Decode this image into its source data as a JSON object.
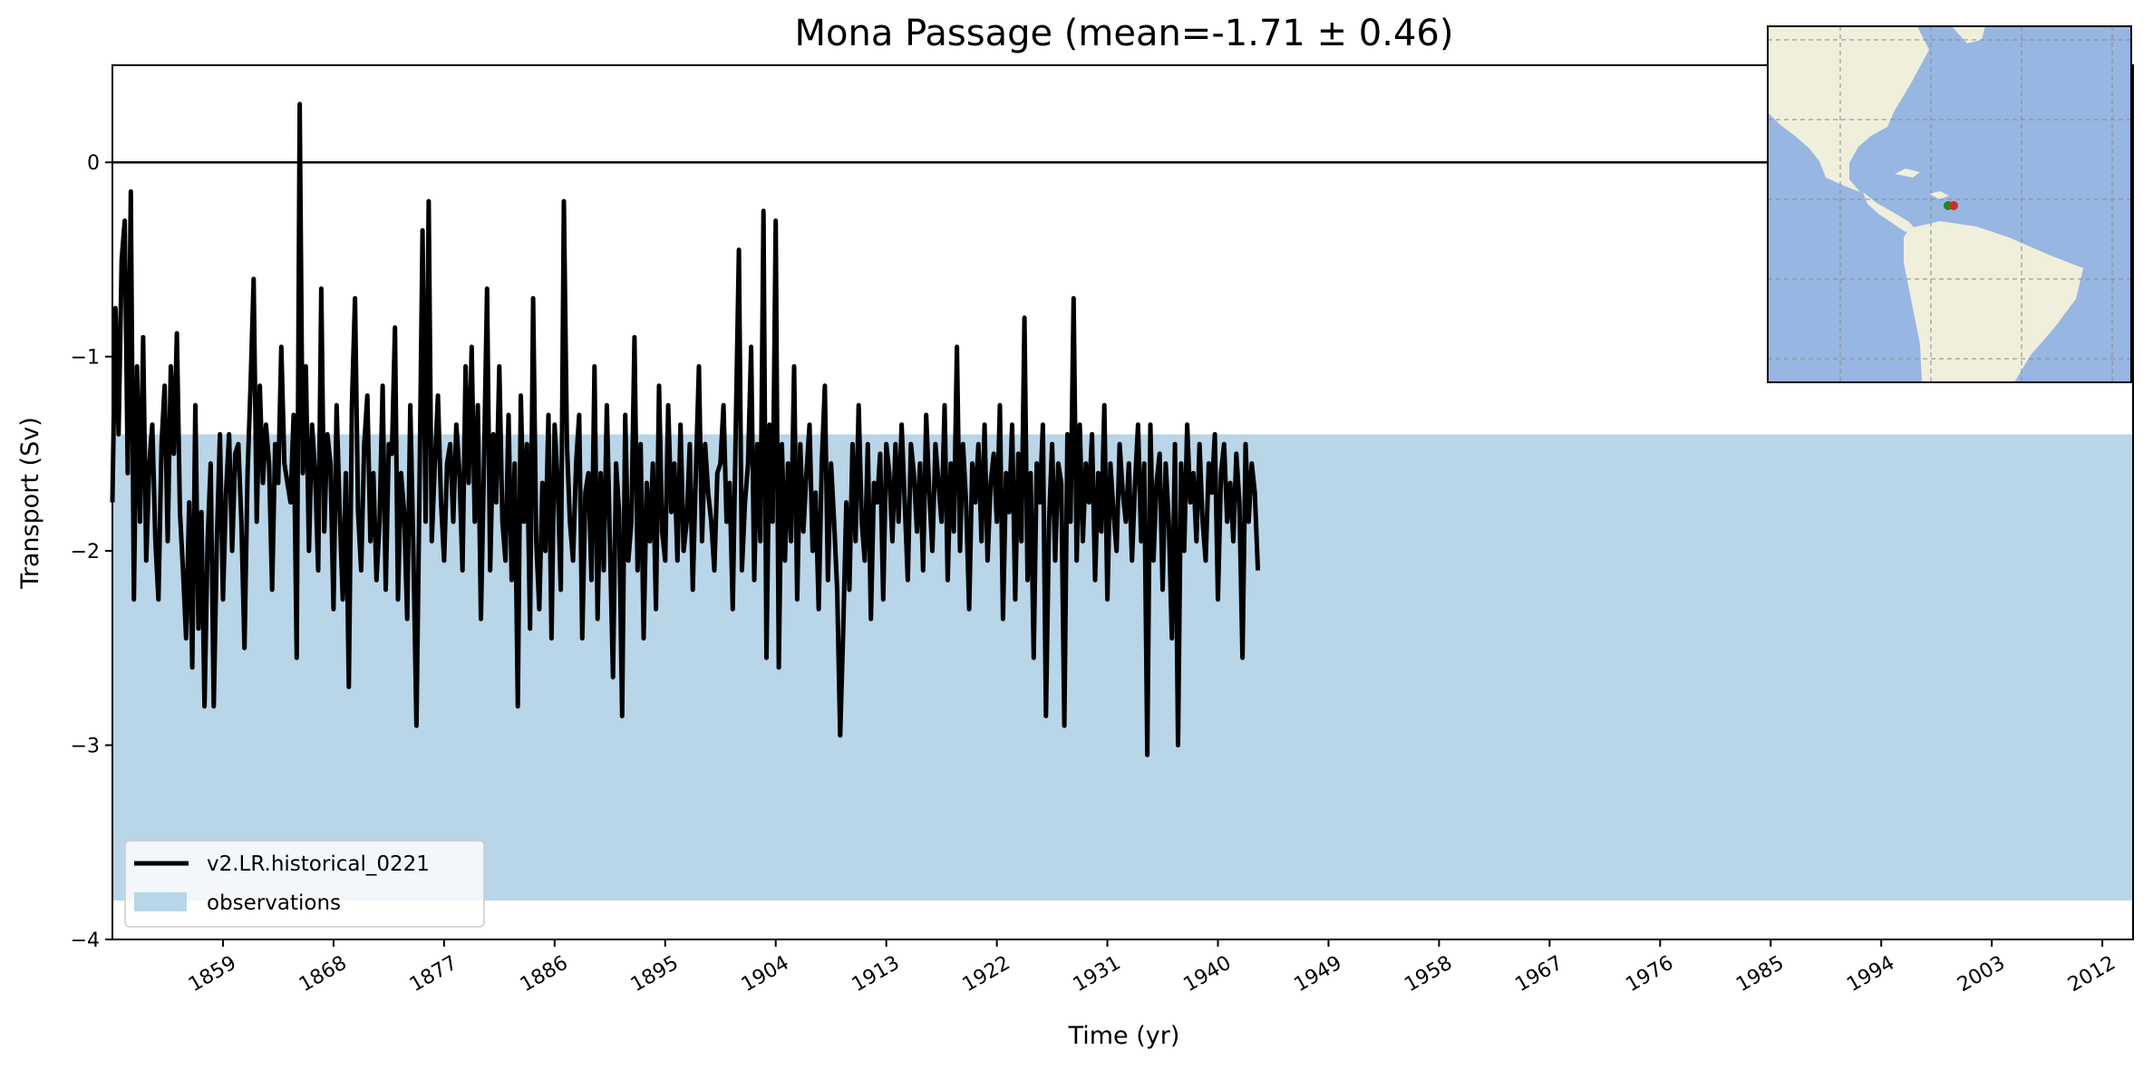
{
  "chart_data": {
    "type": "line",
    "title": "Mona Passage (mean=-1.71 ± 0.46)",
    "xlabel": "Time (yr)",
    "ylabel": "Transport (Sv)",
    "xlim": [
      1850,
      2014.5
    ],
    "ylim": [
      -4,
      0.5
    ],
    "xticks": [
      "1859",
      "1868",
      "1877",
      "1886",
      "1895",
      "1904",
      "1913",
      "1922",
      "1931",
      "1940",
      "1949",
      "1958",
      "1967",
      "1976",
      "1985",
      "1994",
      "2003",
      "2012"
    ],
    "yticks": [
      "0",
      "−1",
      "−2",
      "−3",
      "−4"
    ],
    "zero_line": 0,
    "grid": false,
    "legend_position": "lower-left",
    "observations": {
      "name": "observations",
      "low": -3.8,
      "high": -1.4,
      "color": "#b9d5e8"
    },
    "series": [
      {
        "name": "v2.LR.historical_0221",
        "color": "#000000",
        "x_start": 1850,
        "x_step": 0.25,
        "values": [
          -1.75,
          -0.75,
          -1.4,
          -0.5,
          -0.3,
          -1.6,
          -0.15,
          -2.25,
          -1.05,
          -1.85,
          -0.9,
          -2.05,
          -1.55,
          -1.35,
          -1.95,
          -2.25,
          -1.45,
          -1.15,
          -1.95,
          -1.05,
          -1.5,
          -0.88,
          -1.8,
          -2.1,
          -2.45,
          -1.75,
          -2.6,
          -1.25,
          -2.4,
          -1.8,
          -2.8,
          -1.95,
          -1.55,
          -2.8,
          -1.95,
          -1.4,
          -2.25,
          -1.7,
          -1.4,
          -2.0,
          -1.5,
          -1.45,
          -1.85,
          -2.5,
          -1.6,
          -1.15,
          -0.6,
          -1.85,
          -1.15,
          -1.65,
          -1.35,
          -1.55,
          -2.2,
          -1.45,
          -1.65,
          -0.95,
          -1.55,
          -1.65,
          -1.75,
          -1.3,
          -2.55,
          0.3,
          -1.6,
          -1.05,
          -2.0,
          -1.35,
          -1.6,
          -2.1,
          -0.65,
          -1.9,
          -1.4,
          -1.55,
          -2.3,
          -1.25,
          -1.8,
          -2.25,
          -1.6,
          -2.7,
          -1.25,
          -0.7,
          -1.8,
          -2.1,
          -1.45,
          -1.2,
          -1.95,
          -1.6,
          -2.15,
          -1.85,
          -1.15,
          -2.2,
          -1.45,
          -1.5,
          -0.85,
          -2.25,
          -1.6,
          -1.8,
          -2.35,
          -1.25,
          -2.0,
          -2.9,
          -1.65,
          -0.35,
          -1.85,
          -0.2,
          -1.95,
          -1.55,
          -1.2,
          -1.75,
          -2.05,
          -1.55,
          -1.45,
          -1.85,
          -1.35,
          -1.6,
          -2.1,
          -1.05,
          -1.65,
          -0.95,
          -1.85,
          -1.25,
          -2.35,
          -1.55,
          -0.65,
          -2.1,
          -1.4,
          -1.75,
          -1.05,
          -1.85,
          -2.05,
          -1.3,
          -2.15,
          -1.55,
          -2.8,
          -1.2,
          -1.85,
          -1.45,
          -2.4,
          -0.7,
          -1.95,
          -2.3,
          -1.65,
          -2.0,
          -1.3,
          -2.45,
          -1.35,
          -1.65,
          -2.2,
          -0.2,
          -1.45,
          -1.85,
          -2.05,
          -1.55,
          -1.3,
          -2.45,
          -1.7,
          -1.6,
          -2.15,
          -1.05,
          -2.35,
          -1.6,
          -2.1,
          -1.25,
          -1.95,
          -2.65,
          -1.55,
          -1.8,
          -2.85,
          -1.3,
          -2.05,
          -1.85,
          -0.9,
          -2.1,
          -1.45,
          -2.45,
          -1.65,
          -1.95,
          -1.55,
          -2.3,
          -1.15,
          -1.9,
          -2.05,
          -1.25,
          -1.8,
          -1.55,
          -2.05,
          -1.35,
          -2.0,
          -1.85,
          -1.45,
          -2.2,
          -1.6,
          -1.05,
          -1.95,
          -1.45,
          -1.7,
          -1.85,
          -2.1,
          -1.6,
          -1.55,
          -1.25,
          -1.85,
          -1.65,
          -2.3,
          -1.35,
          -0.45,
          -2.1,
          -1.75,
          -1.55,
          -0.95,
          -2.15,
          -1.45,
          -1.95,
          -0.25,
          -2.55,
          -1.35,
          -1.85,
          -0.3,
          -2.6,
          -1.45,
          -2.05,
          -1.55,
          -1.95,
          -1.05,
          -2.25,
          -1.45,
          -1.9,
          -1.6,
          -1.35,
          -2.0,
          -1.7,
          -2.3,
          -1.55,
          -1.15,
          -2.15,
          -1.55,
          -1.85,
          -2.2,
          -2.95,
          -2.4,
          -1.75,
          -2.2,
          -1.45,
          -1.95,
          -1.25,
          -1.85,
          -2.05,
          -1.45,
          -2.35,
          -1.65,
          -1.75,
          -1.5,
          -2.25,
          -1.45,
          -1.6,
          -1.95,
          -1.45,
          -1.85,
          -1.35,
          -1.75,
          -2.15,
          -1.45,
          -1.6,
          -1.9,
          -1.55,
          -2.1,
          -1.3,
          -1.7,
          -2.0,
          -1.45,
          -1.65,
          -1.85,
          -1.25,
          -2.15,
          -1.55,
          -1.9,
          -0.95,
          -2.0,
          -1.45,
          -1.75,
          -2.3,
          -1.55,
          -1.75,
          -1.45,
          -1.95,
          -1.35,
          -2.05,
          -1.65,
          -1.5,
          -1.85,
          -1.25,
          -2.35,
          -1.6,
          -1.8,
          -1.35,
          -2.25,
          -1.5,
          -1.95,
          -0.8,
          -2.15,
          -1.6,
          -2.55,
          -1.55,
          -1.75,
          -1.35,
          -2.85,
          -1.85,
          -1.45,
          -2.05,
          -1.55,
          -1.65,
          -2.9,
          -1.4,
          -1.85,
          -0.7,
          -2.05,
          -1.35,
          -1.95,
          -1.55,
          -1.75,
          -1.4,
          -2.15,
          -1.6,
          -1.9,
          -1.25,
          -2.25,
          -1.55,
          -1.8,
          -2.0,
          -1.45,
          -1.7,
          -1.85,
          -1.55,
          -2.05,
          -1.65,
          -1.35,
          -1.95,
          -1.55,
          -3.05,
          -1.35,
          -2.05,
          -1.65,
          -1.5,
          -2.2,
          -1.55,
          -1.85,
          -2.45,
          -1.45,
          -3.0,
          -1.55,
          -2.0,
          -1.35,
          -1.75,
          -1.6,
          -1.95,
          -1.45,
          -1.85,
          -2.05,
          -1.55,
          -1.7,
          -1.4,
          -2.25,
          -1.6,
          -1.45,
          -1.85,
          -1.65,
          -1.95,
          -1.5,
          -1.75,
          -2.55,
          -1.45,
          -1.85,
          -1.55,
          -1.7,
          -2.1
        ]
      }
    ],
    "inset_map": {
      "region": "Americas",
      "ocean_color": "#97b6e1",
      "land_color": "#efefdb",
      "markers": [
        {
          "name": "section-start",
          "color": "#1a8a1a"
        },
        {
          "name": "section-end",
          "color": "#d42a2a"
        }
      ]
    }
  }
}
